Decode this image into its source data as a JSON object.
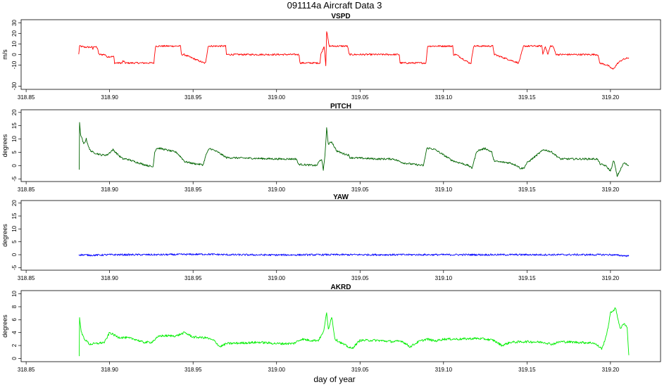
{
  "title": "091114a   Aircraft Data 3",
  "xlabel": "day of year",
  "chart_data": [
    {
      "type": "line",
      "title": "VSPD",
      "ylabel": "m/s",
      "color": "#ff0000",
      "xlim": [
        318.847,
        319.23
      ],
      "ylim": [
        -33,
        33
      ],
      "x_ticks": [
        318.85,
        318.9,
        318.95,
        319.0,
        319.05,
        319.1,
        319.15,
        319.2
      ],
      "x_tick_labels": [
        "318.85",
        "318.90",
        "318.95",
        "319.00",
        "319.05",
        "319.10",
        "319.15",
        "319.20"
      ],
      "y_ticks": [
        -30,
        -10,
        0,
        10,
        20,
        30
      ],
      "y_tick_labels": [
        "-30",
        "-10",
        "0",
        "10",
        "20",
        "30"
      ],
      "noise": 0.8,
      "x": [
        318.8815,
        318.882,
        318.885,
        318.8895,
        318.89,
        318.8905,
        318.892,
        318.893,
        318.8935,
        318.8975,
        318.898,
        318.9025,
        318.903,
        318.9075,
        318.908,
        318.9095,
        318.91,
        318.9265,
        318.9275,
        318.929,
        318.9425,
        318.943,
        318.9445,
        318.9565,
        318.9575,
        318.959,
        318.9695,
        318.97,
        319.0135,
        319.014,
        319.026,
        319.0265,
        319.0285,
        319.0295,
        319.03,
        319.0315,
        319.0335,
        319.0425,
        319.0435,
        319.0735,
        319.074,
        319.0895,
        319.0905,
        319.092,
        319.1055,
        319.106,
        319.1075,
        319.1155,
        319.1165,
        319.118,
        319.1295,
        319.1305,
        319.145,
        319.1465,
        319.148,
        319.159,
        319.1595,
        319.161,
        319.1625,
        319.164,
        319.1655,
        319.1675,
        319.1925,
        319.1935,
        319.198,
        319.2015,
        319.2045,
        319.207,
        319.211
      ],
      "y": [
        0,
        8,
        7,
        7,
        5,
        8,
        7,
        5,
        0,
        0,
        -2,
        -2,
        -8,
        -8,
        -6,
        -8,
        -8,
        -8,
        8,
        8,
        8,
        0,
        0,
        -8,
        -8,
        8,
        8,
        0,
        0,
        -8,
        -8,
        0,
        8,
        -10,
        22,
        8,
        8,
        8,
        0,
        0,
        -8,
        -8,
        8,
        8,
        8,
        0,
        0,
        -8,
        -8,
        8,
        8,
        0,
        -8,
        0,
        8,
        8,
        0,
        8,
        0,
        8,
        8,
        0,
        0,
        -8,
        -10,
        -14,
        -8,
        -5,
        -3
      ]
    },
    {
      "type": "line",
      "title": "PITCH",
      "ylabel": "degrees",
      "color": "#006400",
      "xlim": [
        318.847,
        319.23
      ],
      "ylim": [
        -6,
        21
      ],
      "x_ticks": [
        318.85,
        318.9,
        318.95,
        319.0,
        319.05,
        319.1,
        319.15,
        319.2
      ],
      "x_tick_labels": [
        "318.85",
        "318.90",
        "318.95",
        "319.00",
        "319.05",
        "319.10",
        "319.15",
        "319.20"
      ],
      "y_ticks": [
        -5,
        0,
        5,
        10,
        15,
        20
      ],
      "y_tick_labels": [
        "-5",
        "0",
        "5",
        "10",
        "15",
        "20"
      ],
      "noise": 0.35,
      "x": [
        318.8818,
        318.882,
        318.8825,
        318.8845,
        318.886,
        318.888,
        318.89,
        318.895,
        318.8985,
        318.902,
        318.906,
        318.908,
        318.91,
        318.915,
        318.92,
        318.926,
        318.927,
        318.928,
        318.93,
        318.94,
        318.943,
        318.945,
        318.95,
        318.956,
        318.958,
        318.96,
        318.965,
        318.97,
        319.0,
        319.012,
        319.013,
        319.024,
        319.0255,
        319.027,
        319.028,
        319.029,
        319.03,
        319.031,
        319.033,
        319.036,
        319.04,
        319.043,
        319.044,
        319.06,
        319.07,
        319.074,
        319.076,
        319.088,
        319.09,
        319.092,
        319.095,
        319.1,
        319.105,
        319.107,
        319.11,
        319.115,
        319.117,
        319.12,
        319.125,
        319.129,
        319.13,
        319.132,
        319.14,
        319.144,
        319.146,
        319.148,
        319.15,
        319.16,
        319.163,
        319.165,
        319.17,
        319.18,
        319.192,
        319.194,
        319.197,
        319.2,
        319.202,
        319.204,
        319.208,
        319.211
      ],
      "y": [
        -1.5,
        16.5,
        12,
        8,
        10,
        6,
        5,
        4,
        4,
        6,
        3.5,
        2.5,
        2.5,
        1.5,
        0.5,
        -0.5,
        5,
        6.5,
        6.5,
        5,
        3,
        1.5,
        0.8,
        0.3,
        4.5,
        6.5,
        5,
        3,
        2.5,
        2.5,
        0.5,
        0,
        1.5,
        2.5,
        -2,
        4,
        14,
        8,
        9,
        5.5,
        4.5,
        4,
        3,
        2.5,
        2.5,
        1.5,
        1,
        0,
        6.5,
        6.5,
        6,
        4,
        2,
        1.5,
        1,
        0,
        -1,
        5.5,
        6.5,
        5,
        2,
        1.5,
        1,
        0,
        -1,
        -1,
        1,
        6,
        5.5,
        5,
        2.5,
        2.5,
        2.5,
        0.5,
        0,
        -2,
        2,
        -4,
        1,
        0
      ]
    },
    {
      "type": "line",
      "title": "YAW",
      "ylabel": "degrees",
      "color": "#0000ff",
      "xlim": [
        318.847,
        319.23
      ],
      "ylim": [
        -6,
        21
      ],
      "x_ticks": [
        318.85,
        318.9,
        318.95,
        319.0,
        319.05,
        319.1,
        319.15,
        319.2
      ],
      "x_tick_labels": [
        "318.85",
        "318.90",
        "318.95",
        "319.00",
        "319.05",
        "319.10",
        "319.15",
        "319.20"
      ],
      "y_ticks": [
        -5,
        0,
        5,
        10,
        15,
        20
      ],
      "y_tick_labels": [
        "-5",
        "0",
        "5",
        "10",
        "15",
        "20"
      ],
      "noise": 0.35,
      "x": [
        318.8815,
        318.89,
        318.9,
        318.93,
        318.958,
        318.97,
        319.0,
        319.03,
        319.05,
        319.1,
        319.15,
        319.2,
        319.211
      ],
      "y": [
        0,
        -0.2,
        0,
        0,
        0.2,
        0,
        -0.1,
        0,
        0,
        0,
        0,
        0,
        -0.5
      ]
    },
    {
      "type": "line",
      "title": "AKRD",
      "ylabel": "degrees",
      "color": "#00ee00",
      "xlim": [
        318.847,
        319.23
      ],
      "ylim": [
        -0.5,
        10.5
      ],
      "x_ticks": [
        318.85,
        318.9,
        318.95,
        319.0,
        319.05,
        319.1,
        319.15,
        319.2
      ],
      "x_tick_labels": [
        "318.85",
        "318.90",
        "318.95",
        "319.00",
        "319.05",
        "319.10",
        "319.15",
        "319.20"
      ],
      "y_ticks": [
        0,
        2,
        4,
        6,
        8,
        10
      ],
      "y_tick_labels": [
        "0",
        "2",
        "4",
        "6",
        "8",
        "10"
      ],
      "noise": 0.18,
      "x": [
        318.8818,
        318.882,
        318.883,
        318.885,
        318.888,
        318.892,
        318.897,
        318.9,
        318.905,
        318.91,
        318.915,
        318.92,
        318.925,
        318.93,
        318.94,
        318.945,
        318.95,
        318.958,
        318.963,
        318.966,
        318.97,
        318.98,
        318.99,
        319.0,
        319.01,
        319.015,
        319.02,
        319.025,
        319.028,
        319.03,
        319.031,
        319.033,
        319.035,
        319.04,
        319.045,
        319.05,
        319.06,
        319.07,
        319.075,
        319.08,
        319.085,
        319.09,
        319.095,
        319.1,
        319.11,
        319.12,
        319.125,
        319.13,
        319.135,
        319.14,
        319.15,
        319.16,
        319.165,
        319.17,
        319.18,
        319.19,
        319.195,
        319.198,
        319.2,
        319.203,
        319.206,
        319.208,
        319.21,
        319.211
      ],
      "y": [
        0.5,
        6.5,
        4,
        3,
        2.2,
        2.3,
        2.5,
        4,
        3.3,
        3.2,
        3,
        2.5,
        2.5,
        3.5,
        3.5,
        4,
        3.3,
        3.2,
        2.7,
        1.8,
        2.3,
        2.4,
        2.5,
        2.3,
        2.3,
        3,
        2.8,
        2.8,
        4,
        7,
        4.5,
        6.5,
        3,
        2.2,
        1.5,
        2.8,
        2.8,
        2.6,
        2.7,
        1.8,
        2.6,
        3,
        2.7,
        3,
        3,
        3.1,
        3,
        2.8,
        2,
        2.5,
        2.6,
        2.5,
        2.2,
        2.6,
        2.5,
        2.4,
        1.5,
        4,
        7,
        7.8,
        4.5,
        5.5,
        4.8,
        0.5
      ]
    }
  ]
}
